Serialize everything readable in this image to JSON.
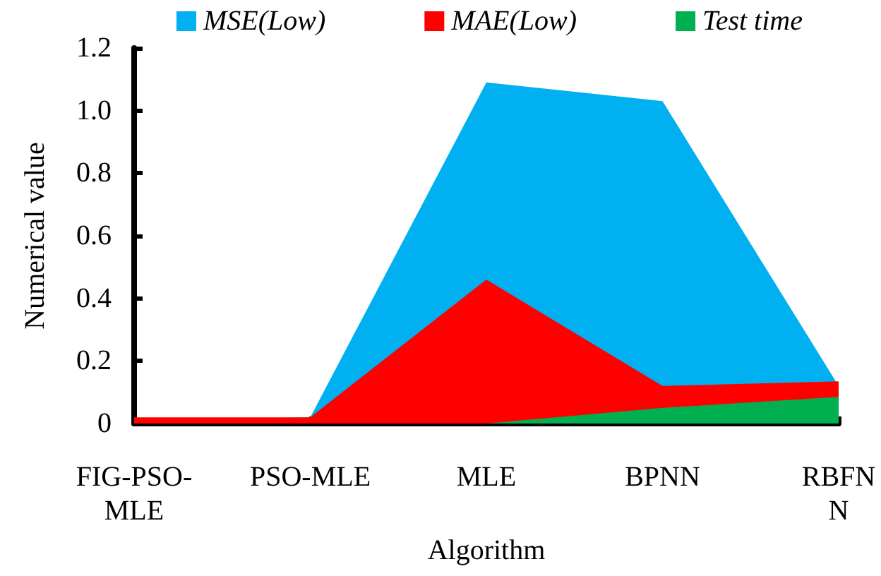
{
  "chart_data": {
    "type": "area",
    "xlabel": "Algorithm",
    "ylabel": "Numerical value",
    "categories": [
      "FIG-PSO-MLE",
      "PSO-MLE",
      "MLE",
      "BPNN",
      "RBFNN"
    ],
    "series": [
      {
        "name": "MSE(Low)",
        "color": "#00b0f0",
        "values": [
          0.01,
          0.02,
          1.09,
          1.03,
          0.12
        ]
      },
      {
        "name": "MAE(Low)",
        "color": "#ff0000",
        "values": [
          0.02,
          0.02,
          0.46,
          0.12,
          0.135
        ]
      },
      {
        "name": "Test time",
        "color": "#00b050",
        "values": [
          0,
          0,
          0,
          0.05,
          0.085
        ]
      }
    ],
    "ylim": [
      0,
      1.2
    ],
    "yticks": [
      0,
      0.2,
      0.4,
      0.6,
      0.8,
      {
        "value": 1,
        "label": "1.0"
      },
      1.2
    ],
    "grid": false,
    "legend": "top"
  }
}
